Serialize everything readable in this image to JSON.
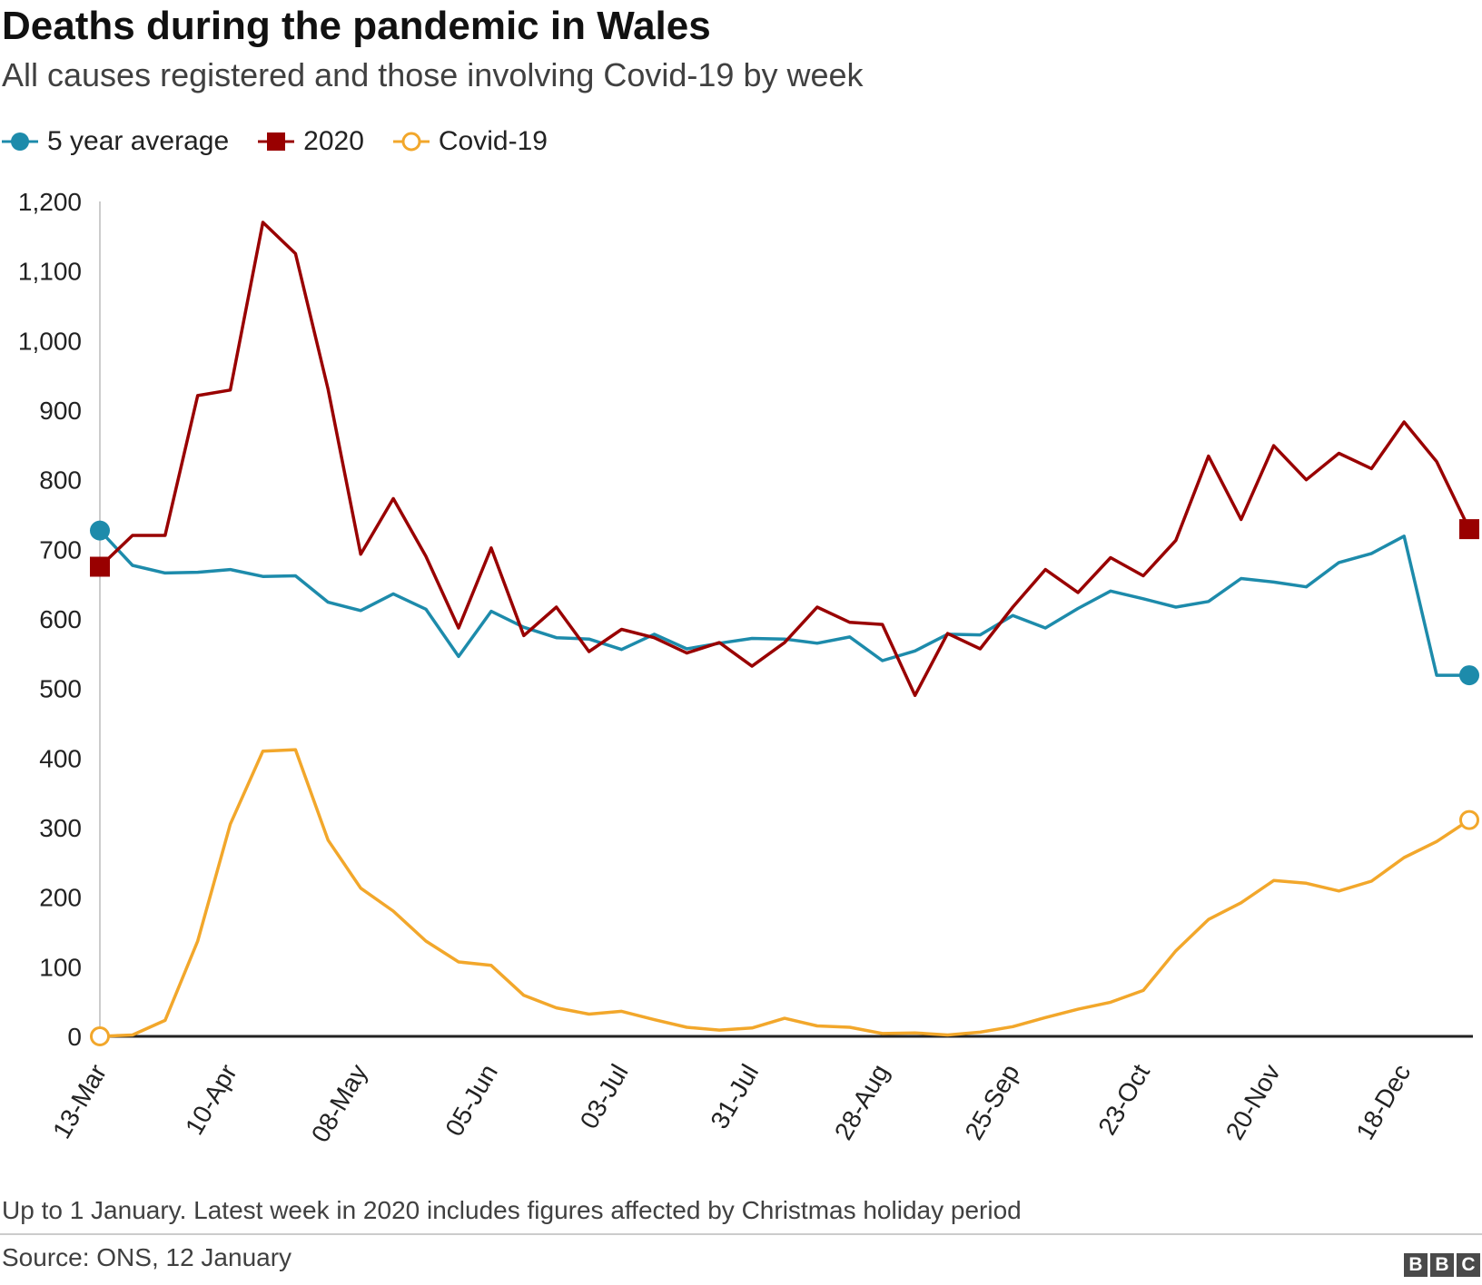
{
  "chart_data": {
    "type": "line",
    "title": "Deaths during the pandemic in Wales",
    "subtitle": "All causes registered and those involving Covid-19 by week",
    "ylim": [
      0,
      1200
    ],
    "yticks": [
      0,
      100,
      200,
      300,
      400,
      500,
      600,
      700,
      800,
      900,
      1000,
      1100,
      1200
    ],
    "ytick_labels": [
      "0",
      "100",
      "200",
      "300",
      "400",
      "500",
      "600",
      "700",
      "800",
      "900",
      "1,000",
      "1,100",
      "1,200"
    ],
    "xtick_labels": [
      "13-Mar",
      "10-Apr",
      "08-May",
      "05-Jun",
      "03-Jul",
      "31-Jul",
      "28-Aug",
      "25-Sep",
      "23-Oct",
      "20-Nov",
      "18-Dec"
    ],
    "xtick_index": [
      0,
      4,
      8,
      12,
      16,
      20,
      24,
      28,
      32,
      36,
      40
    ],
    "weeks": 43,
    "legend": "top-left",
    "series": [
      {
        "name": "5 year average",
        "color": "#1d8bab",
        "marker": "circle-filled",
        "values": [
          727,
          677,
          666,
          667,
          671,
          661,
          662,
          624,
          612,
          636,
          614,
          546,
          611,
          588,
          573,
          571,
          556,
          578,
          557,
          565,
          572,
          571,
          565,
          574,
          540,
          554,
          578,
          577,
          605,
          587,
          615,
          640,
          629,
          617,
          625,
          658,
          653,
          646,
          681,
          694,
          719,
          519,
          519
        ]
      },
      {
        "name": "2020",
        "color": "#990000",
        "marker": "square-filled",
        "values": [
          675,
          720,
          720,
          921,
          929,
          1170,
          1125,
          930,
          693,
          773,
          690,
          587,
          702,
          576,
          617,
          553,
          585,
          573,
          551,
          566,
          532,
          566,
          617,
          595,
          592,
          490,
          579,
          557,
          617,
          671,
          638,
          688,
          662,
          713,
          834,
          743,
          849,
          800,
          838,
          816,
          883,
          826,
          729
        ]
      },
      {
        "name": "Covid-19",
        "color": "#f2a72b",
        "marker": "circle-open",
        "values": [
          0,
          2,
          23,
          137,
          305,
          410,
          412,
          282,
          213,
          180,
          137,
          107,
          102,
          59,
          41,
          32,
          36,
          24,
          13,
          9,
          12,
          26,
          15,
          13,
          4,
          5,
          2,
          6,
          14,
          27,
          39,
          49,
          66,
          123,
          168,
          192,
          224,
          220,
          209,
          223,
          257,
          280,
          311
        ]
      }
    ]
  },
  "footer": {
    "note": "Up to 1 January. Latest week in 2020 includes figures affected by Christmas holiday period",
    "source": "Source: ONS, 12 January",
    "logo": [
      "B",
      "B",
      "C"
    ]
  }
}
